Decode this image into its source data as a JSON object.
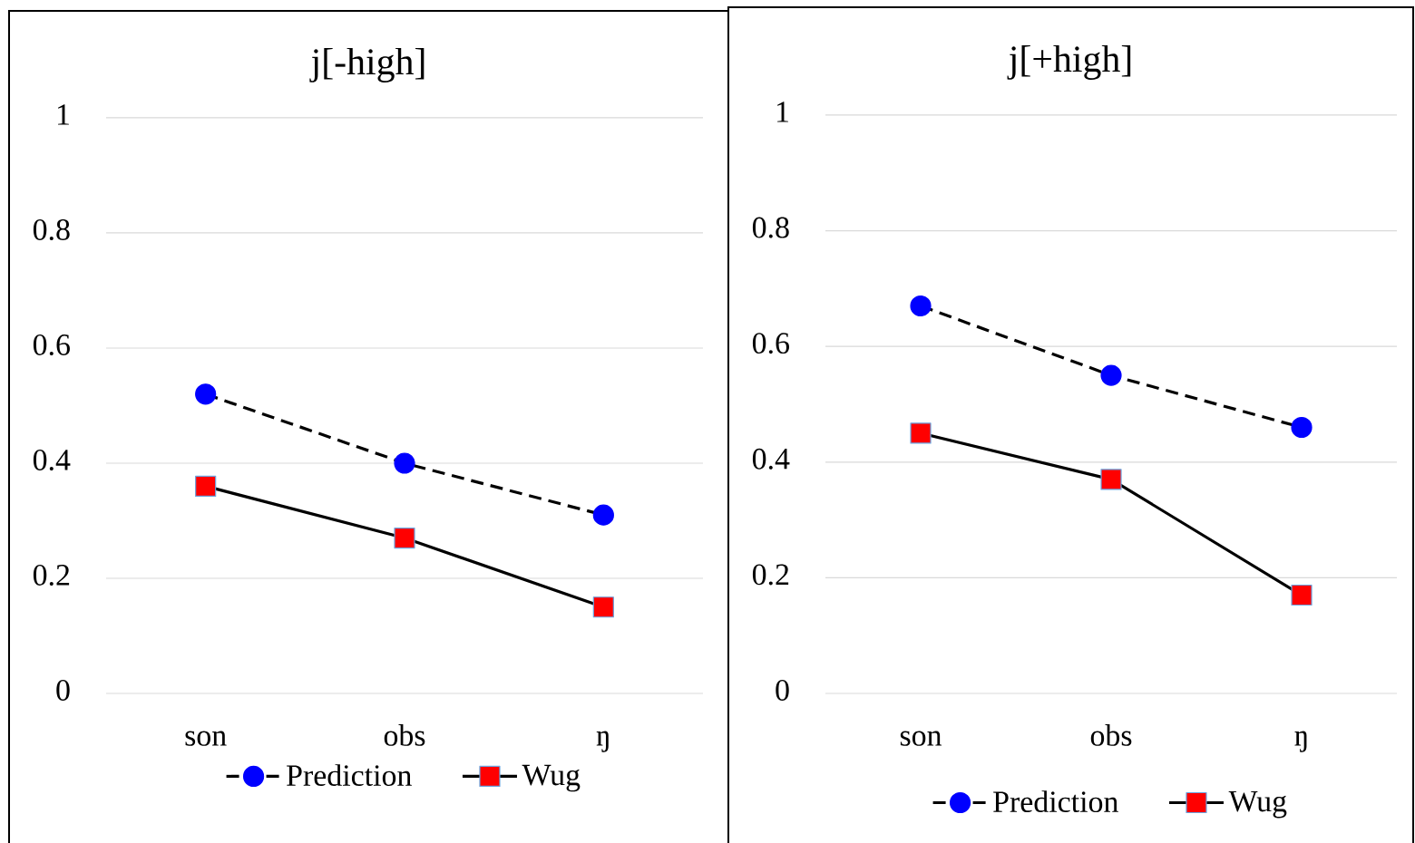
{
  "chart_data": [
    {
      "type": "line",
      "title": "j[-high]",
      "categories": [
        "son",
        "obs",
        "ŋ"
      ],
      "ylim": [
        0,
        1
      ],
      "yticks": [
        0,
        0.2,
        0.4,
        0.6,
        0.8,
        1
      ],
      "grid": "y",
      "legend": "bottom",
      "series": [
        {
          "name": "Prediction",
          "color": "#0000ff",
          "marker": "circle",
          "line_style": "dashed",
          "values": [
            0.52,
            0.4,
            0.31
          ]
        },
        {
          "name": "Wug",
          "color": "#ff0000",
          "marker": "square",
          "line_style": "solid",
          "values": [
            0.36,
            0.27,
            0.15
          ]
        }
      ]
    },
    {
      "type": "line",
      "title": "j[+high]",
      "categories": [
        "son",
        "obs",
        "ŋ"
      ],
      "ylim": [
        0,
        1
      ],
      "yticks": [
        0,
        0.2,
        0.4,
        0.6,
        0.8,
        1
      ],
      "grid": "y",
      "legend": "bottom",
      "series": [
        {
          "name": "Prediction",
          "color": "#0000ff",
          "marker": "circle",
          "line_style": "dashed",
          "values": [
            0.67,
            0.55,
            0.46
          ]
        },
        {
          "name": "Wug",
          "color": "#ff0000",
          "marker": "square",
          "line_style": "solid",
          "values": [
            0.45,
            0.37,
            0.17
          ]
        }
      ]
    }
  ]
}
